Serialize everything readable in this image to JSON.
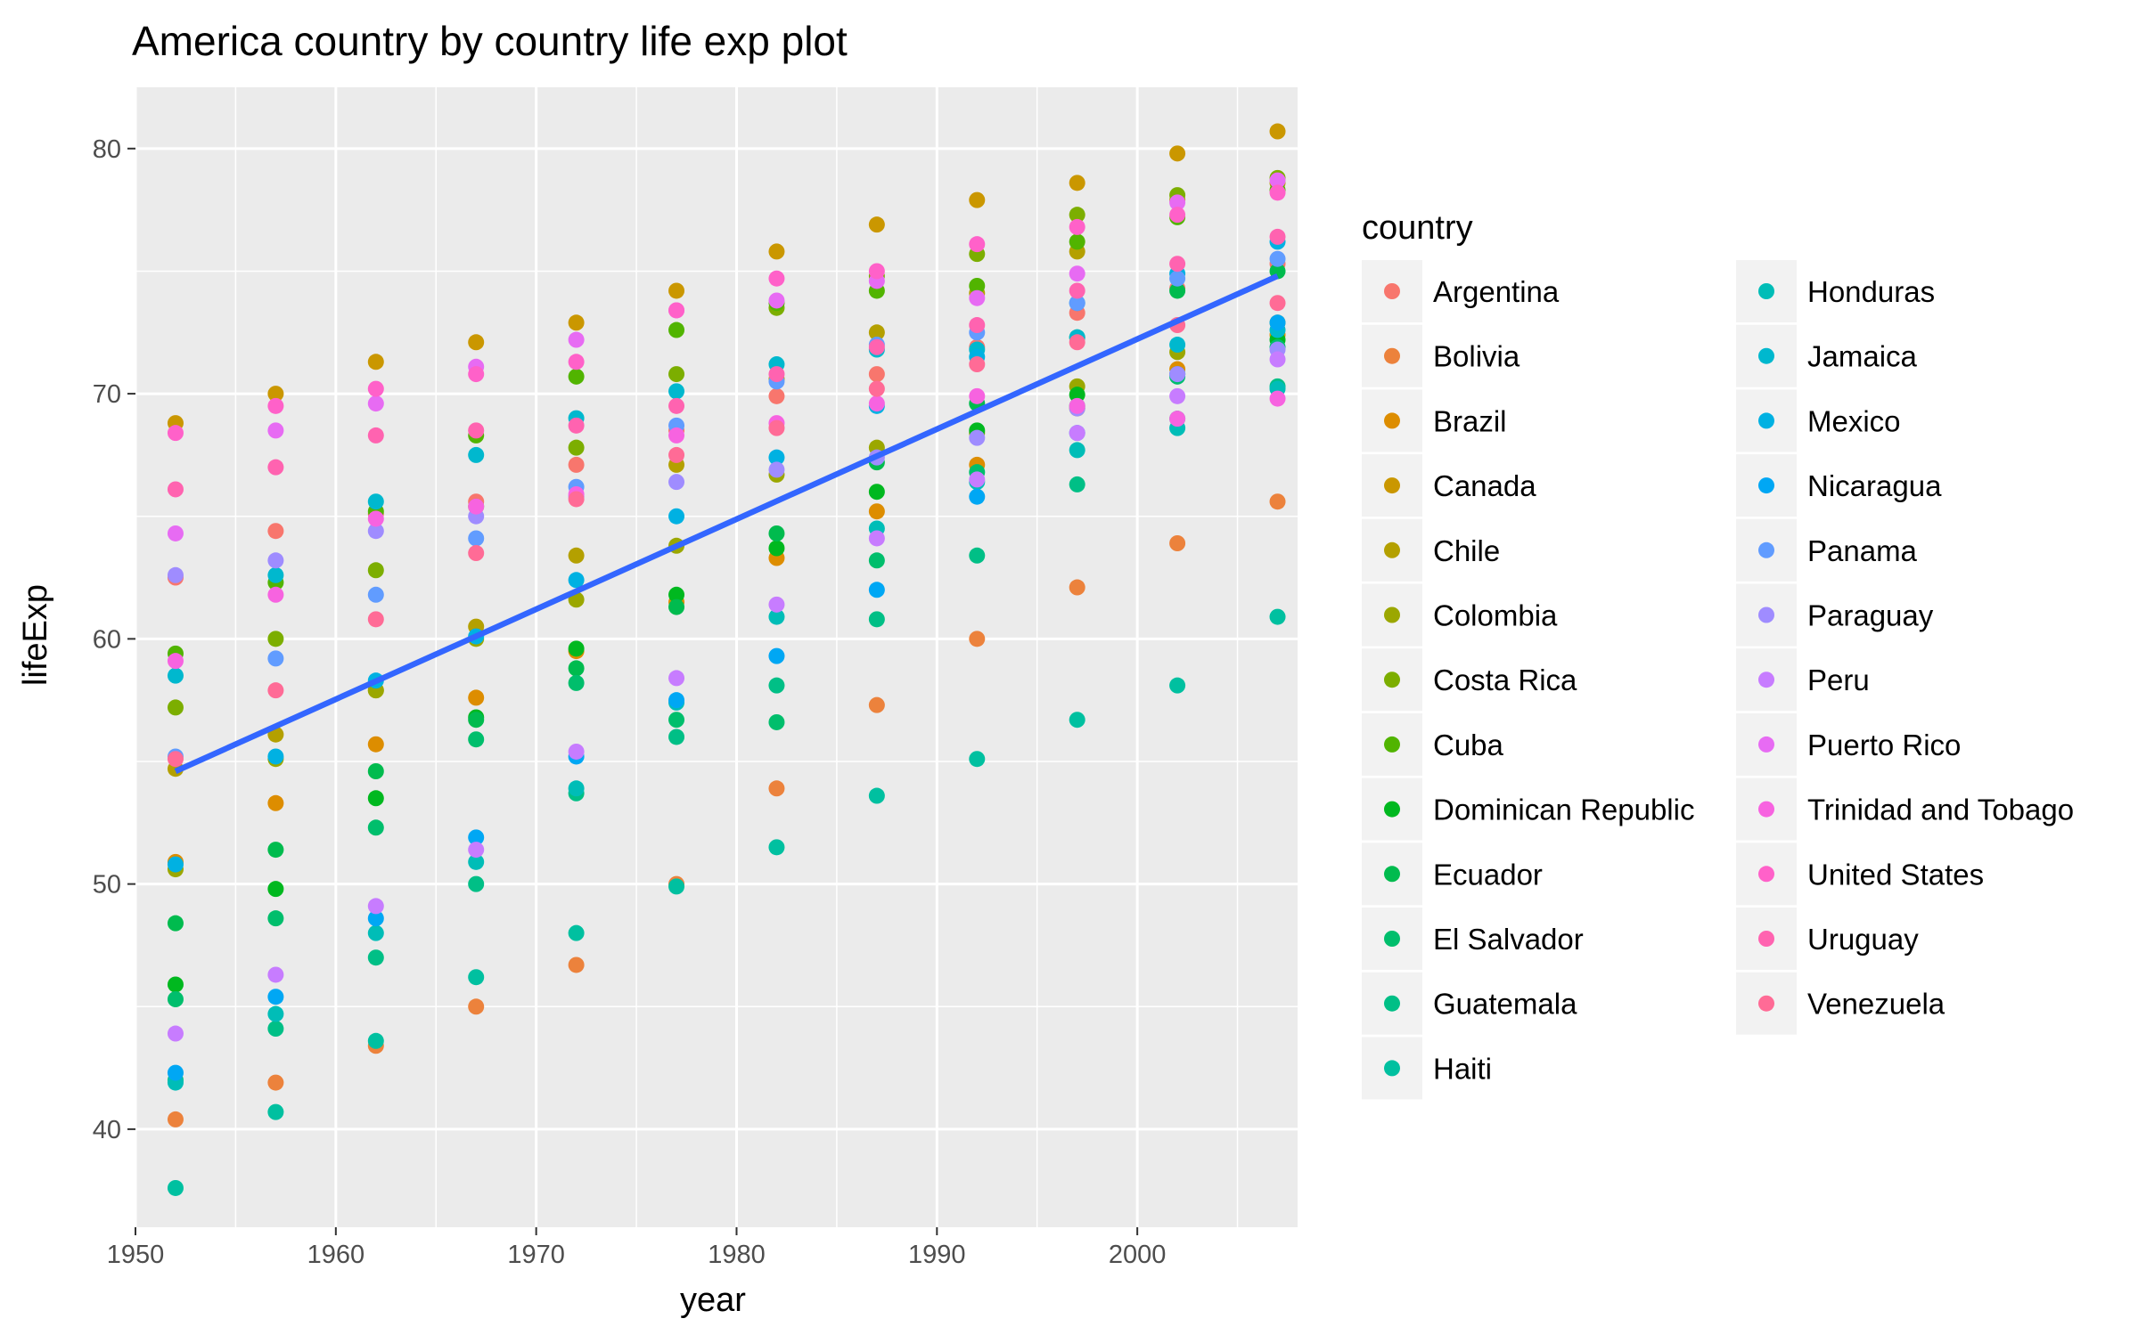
{
  "chart_data": {
    "type": "scatter",
    "title": "America country by country life exp plot",
    "xlabel": "year",
    "ylabel": "lifeExp",
    "xlim": [
      1950,
      2008
    ],
    "ylim": [
      36,
      82.5
    ],
    "x_ticks": [
      1950,
      1960,
      1970,
      1980,
      1990,
      2000
    ],
    "y_ticks": [
      40,
      50,
      60,
      70,
      80
    ],
    "grid": true,
    "legend_title": "country",
    "legend_position": "right",
    "x": [
      1952,
      1957,
      1962,
      1967,
      1972,
      1977,
      1982,
      1987,
      1992,
      1997,
      2002,
      2007
    ],
    "series": [
      {
        "name": "Argentina",
        "color": "#F8766D",
        "values": [
          62.5,
          64.4,
          65.1,
          65.6,
          67.1,
          68.5,
          69.9,
          70.8,
          71.9,
          73.3,
          74.3,
          75.3
        ]
      },
      {
        "name": "Bolivia",
        "color": "#EC823C",
        "values": [
          40.4,
          41.9,
          43.4,
          45.0,
          46.7,
          50.0,
          53.9,
          57.3,
          60.0,
          62.1,
          63.9,
          65.6
        ]
      },
      {
        "name": "Brazil",
        "color": "#DD8D00",
        "values": [
          50.9,
          53.3,
          55.7,
          57.6,
          59.5,
          61.5,
          63.3,
          65.2,
          67.1,
          69.4,
          71.0,
          72.4
        ]
      },
      {
        "name": "Canada",
        "color": "#CA9700",
        "values": [
          68.8,
          70.0,
          71.3,
          72.1,
          72.9,
          74.2,
          75.8,
          76.9,
          77.9,
          78.6,
          79.8,
          80.7
        ]
      },
      {
        "name": "Chile",
        "color": "#B4A000",
        "values": [
          54.7,
          56.1,
          57.9,
          60.5,
          63.4,
          67.1,
          70.6,
          72.5,
          74.1,
          75.8,
          77.9,
          78.6
        ]
      },
      {
        "name": "Colombia",
        "color": "#9BA700",
        "values": [
          50.6,
          55.1,
          57.9,
          60.0,
          61.6,
          63.8,
          66.7,
          67.8,
          68.4,
          70.3,
          71.7,
          72.9
        ]
      },
      {
        "name": "Costa Rica",
        "color": "#7CAE00",
        "values": [
          57.2,
          60.0,
          62.8,
          65.4,
          67.8,
          70.8,
          73.5,
          74.8,
          75.7,
          77.3,
          78.1,
          78.8
        ]
      },
      {
        "name": "Cuba",
        "color": "#51B400",
        "values": [
          59.4,
          62.3,
          65.2,
          68.3,
          70.7,
          72.6,
          73.7,
          74.2,
          74.4,
          76.2,
          77.2,
          78.3
        ]
      },
      {
        "name": "Dominican Republic",
        "color": "#00B81F",
        "values": [
          45.9,
          49.8,
          53.5,
          56.8,
          59.6,
          61.8,
          63.7,
          66.0,
          68.5,
          69.96,
          70.8,
          72.2
        ]
      },
      {
        "name": "Ecuador",
        "color": "#00BB4E",
        "values": [
          48.4,
          51.4,
          54.6,
          56.7,
          58.8,
          61.3,
          64.3,
          67.2,
          69.6,
          72.3,
          74.2,
          75.0
        ]
      },
      {
        "name": "El Salvador",
        "color": "#00BE6C",
        "values": [
          45.3,
          48.6,
          52.3,
          55.9,
          58.2,
          56.7,
          56.6,
          63.2,
          66.8,
          69.5,
          70.7,
          71.9
        ]
      },
      {
        "name": "Guatemala",
        "color": "#00BF86",
        "values": [
          42.0,
          44.1,
          47.0,
          50.0,
          53.7,
          56.0,
          58.1,
          60.8,
          63.4,
          66.3,
          68.98,
          70.3
        ]
      },
      {
        "name": "Haiti",
        "color": "#00C0A0",
        "values": [
          37.6,
          40.7,
          43.6,
          46.2,
          48.0,
          49.9,
          51.5,
          53.6,
          55.1,
          56.7,
          58.1,
          60.9
        ]
      },
      {
        "name": "Honduras",
        "color": "#00BDB7",
        "values": [
          41.9,
          44.7,
          48.0,
          50.9,
          53.9,
          57.4,
          60.9,
          64.5,
          66.4,
          67.7,
          68.6,
          70.2
        ]
      },
      {
        "name": "Jamaica",
        "color": "#00B8CE",
        "values": [
          58.5,
          62.6,
          65.6,
          67.5,
          69.0,
          70.1,
          71.2,
          71.8,
          71.8,
          72.3,
          72.0,
          72.6
        ]
      },
      {
        "name": "Mexico",
        "color": "#00B1E2",
        "values": [
          50.8,
          55.2,
          58.3,
          60.1,
          62.4,
          65.0,
          67.4,
          69.5,
          71.5,
          73.7,
          74.9,
          76.2
        ]
      },
      {
        "name": "Nicaragua",
        "color": "#00A7F4",
        "values": [
          42.3,
          45.4,
          48.6,
          51.9,
          55.2,
          57.5,
          59.3,
          62.0,
          65.8,
          68.4,
          70.8,
          72.9
        ]
      },
      {
        "name": "Panama",
        "color": "#619CFF",
        "values": [
          55.2,
          59.2,
          61.8,
          64.1,
          66.2,
          68.7,
          70.5,
          72.0,
          72.5,
          73.7,
          74.7,
          75.5
        ]
      },
      {
        "name": "Paraguay",
        "color": "#9F8CFF",
        "values": [
          62.6,
          63.2,
          64.4,
          65.0,
          65.8,
          66.4,
          66.9,
          67.4,
          68.2,
          69.4,
          70.8,
          71.8
        ]
      },
      {
        "name": "Peru",
        "color": "#C77CFF",
        "values": [
          43.9,
          46.3,
          49.1,
          51.4,
          55.4,
          58.4,
          61.4,
          64.1,
          66.5,
          68.4,
          69.9,
          71.4
        ]
      },
      {
        "name": "Puerto Rico",
        "color": "#E76BF3",
        "values": [
          64.3,
          68.5,
          69.6,
          71.1,
          72.2,
          73.4,
          73.8,
          74.6,
          73.9,
          74.9,
          77.8,
          78.7
        ]
      },
      {
        "name": "Trinidad and Tobago",
        "color": "#F763E0",
        "values": [
          59.1,
          61.8,
          64.9,
          65.4,
          65.9,
          68.3,
          68.8,
          69.6,
          69.9,
          69.5,
          68.98,
          69.8
        ]
      },
      {
        "name": "United States",
        "color": "#FF61C9",
        "values": [
          68.4,
          69.5,
          70.2,
          70.8,
          71.3,
          73.4,
          74.7,
          75.0,
          76.1,
          76.8,
          77.3,
          78.2
        ]
      },
      {
        "name": "Uruguay",
        "color": "#FF63B0",
        "values": [
          66.1,
          67.0,
          68.3,
          68.5,
          68.7,
          69.5,
          70.8,
          71.9,
          72.8,
          74.2,
          75.3,
          76.4
        ]
      },
      {
        "name": "Venezuela",
        "color": "#FF6B96",
        "values": [
          55.1,
          57.9,
          60.8,
          63.5,
          65.7,
          67.5,
          68.6,
          70.2,
          71.2,
          72.1,
          72.8,
          73.7
        ]
      }
    ],
    "trend_line": {
      "type": "linear",
      "color": "#3366FF",
      "x": [
        1952,
        2007
      ],
      "y": [
        54.6,
        74.8
      ]
    }
  }
}
